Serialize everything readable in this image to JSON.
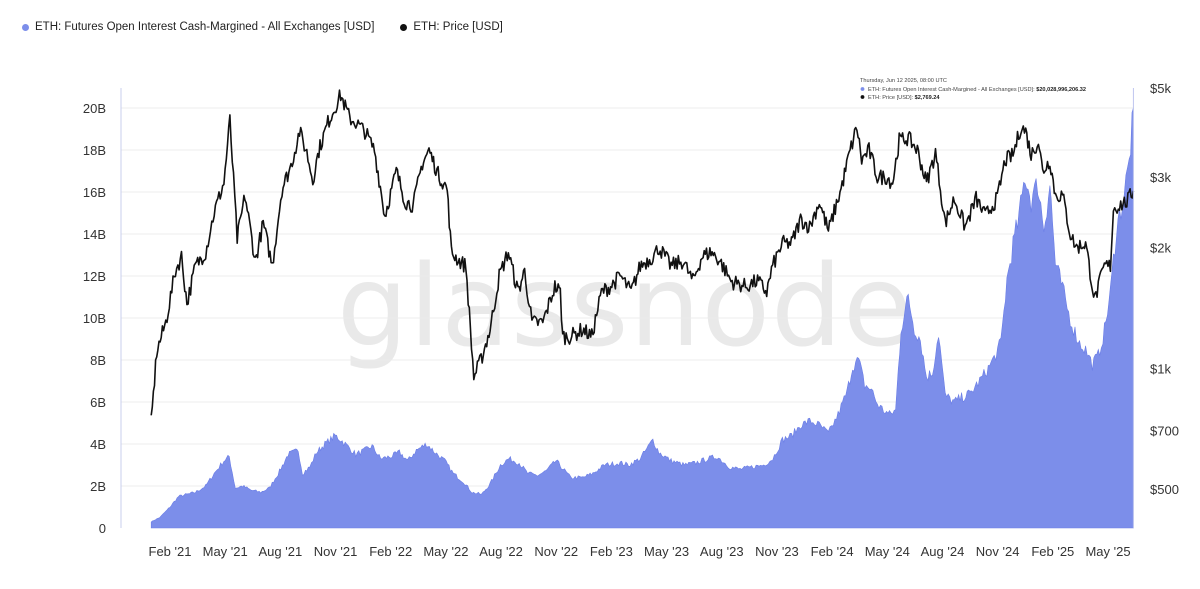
{
  "legend": {
    "oi_label": "ETH: Futures Open Interest Cash-Margined - All Exchanges [USD]",
    "price_label": "ETH: Price [USD]"
  },
  "colors": {
    "oi_fill": "#7c8eea",
    "oi_stroke": "#6a7de6",
    "price": "#111111",
    "grid": "#ececec"
  },
  "watermark": "glassnode",
  "tooltip": {
    "date": "Thursday, Jun 12 2025, 08:00 UTC",
    "oi_label": "ETH: Futures Open Interest Cash-Margined - All Exchanges [USD]:",
    "oi_value": "$20,028,996,206.32",
    "price_label": "ETH: Price [USD]:",
    "price_value": "$2,769.24"
  },
  "chart_data": {
    "type": "area",
    "x_start": "2021-01",
    "x_end": "2025-06",
    "x_ticks": [
      "Feb '21",
      "May '21",
      "Aug '21",
      "Nov '21",
      "Feb '22",
      "May '22",
      "Aug '22",
      "Nov '22",
      "Feb '23",
      "May '23",
      "Aug '23",
      "Nov '23",
      "Feb '24",
      "May '24",
      "Aug '24",
      "Nov '24",
      "Feb '25",
      "May '25"
    ],
    "y_left": {
      "label": "",
      "ticks": [
        "0",
        "2B",
        "4B",
        "6B",
        "8B",
        "10B",
        "12B",
        "14B",
        "16B",
        "18B",
        "20B"
      ],
      "range": [
        0,
        20000000000
      ]
    },
    "y_right": {
      "label": "",
      "scale": "log",
      "ticks": [
        "$500",
        "$700",
        "$1k",
        "$2k",
        "$3k",
        "$5k"
      ],
      "tick_values": [
        500,
        700,
        1000,
        2000,
        3000,
        5000
      ]
    },
    "grid": true,
    "series": [
      {
        "name": "ETH: Futures Open Interest Cash-Margined - All Exchanges [USD]",
        "axis": "left",
        "type": "area",
        "points": [
          [
            "2021-01-01",
            0.3
          ],
          [
            "2021-01-15",
            0.5
          ],
          [
            "2021-02-01",
            1.0
          ],
          [
            "2021-02-15",
            1.5
          ],
          [
            "2021-03-01",
            1.6
          ],
          [
            "2021-03-15",
            1.7
          ],
          [
            "2021-04-01",
            2.0
          ],
          [
            "2021-04-15",
            2.6
          ],
          [
            "2021-05-01",
            3.2
          ],
          [
            "2021-05-10",
            3.4
          ],
          [
            "2021-05-20",
            1.9
          ],
          [
            "2021-06-01",
            2.0
          ],
          [
            "2021-06-15",
            1.8
          ],
          [
            "2021-07-01",
            1.7
          ],
          [
            "2021-07-15",
            1.9
          ],
          [
            "2021-08-01",
            2.7
          ],
          [
            "2021-08-15",
            3.5
          ],
          [
            "2021-09-01",
            3.7
          ],
          [
            "2021-09-08",
            2.6
          ],
          [
            "2021-09-20",
            2.9
          ],
          [
            "2021-10-01",
            3.6
          ],
          [
            "2021-10-15",
            4.0
          ],
          [
            "2021-11-01",
            4.4
          ],
          [
            "2021-11-10",
            4.2
          ],
          [
            "2021-11-25",
            3.8
          ],
          [
            "2021-12-05",
            3.5
          ],
          [
            "2021-12-20",
            3.7
          ],
          [
            "2022-01-01",
            3.9
          ],
          [
            "2022-01-15",
            3.3
          ],
          [
            "2022-02-01",
            3.4
          ],
          [
            "2022-02-15",
            3.6
          ],
          [
            "2022-03-01",
            3.2
          ],
          [
            "2022-03-15",
            3.7
          ],
          [
            "2022-04-01",
            4.0
          ],
          [
            "2022-04-15",
            3.6
          ],
          [
            "2022-05-01",
            3.2
          ],
          [
            "2022-05-15",
            2.6
          ],
          [
            "2022-06-01",
            2.2
          ],
          [
            "2022-06-15",
            1.7
          ],
          [
            "2022-07-01",
            1.6
          ],
          [
            "2022-07-15",
            2.1
          ],
          [
            "2022-08-01",
            3.0
          ],
          [
            "2022-08-15",
            3.3
          ],
          [
            "2022-09-01",
            3.1
          ],
          [
            "2022-09-15",
            2.6
          ],
          [
            "2022-10-01",
            2.5
          ],
          [
            "2022-10-15",
            2.7
          ],
          [
            "2022-11-01",
            3.2
          ],
          [
            "2022-11-10",
            2.9
          ],
          [
            "2022-11-25",
            2.4
          ],
          [
            "2022-12-15",
            2.4
          ],
          [
            "2023-01-01",
            2.6
          ],
          [
            "2023-01-20",
            3.0
          ],
          [
            "2023-02-15",
            3.1
          ],
          [
            "2023-03-01",
            3.0
          ],
          [
            "2023-03-20",
            3.3
          ],
          [
            "2023-04-10",
            4.2
          ],
          [
            "2023-04-20",
            3.6
          ],
          [
            "2023-05-10",
            3.2
          ],
          [
            "2023-06-01",
            3.0
          ],
          [
            "2023-06-20",
            3.1
          ],
          [
            "2023-07-10",
            3.3
          ],
          [
            "2023-07-25",
            3.4
          ],
          [
            "2023-08-15",
            2.9
          ],
          [
            "2023-09-01",
            2.8
          ],
          [
            "2023-09-20",
            2.9
          ],
          [
            "2023-10-10",
            3.0
          ],
          [
            "2023-10-25",
            3.3
          ],
          [
            "2023-11-10",
            4.2
          ],
          [
            "2023-11-25",
            4.4
          ],
          [
            "2023-12-10",
            4.9
          ],
          [
            "2023-12-25",
            5.1
          ],
          [
            "2024-01-10",
            4.9
          ],
          [
            "2024-01-25",
            4.5
          ],
          [
            "2024-02-10",
            5.4
          ],
          [
            "2024-02-25",
            6.5
          ],
          [
            "2024-03-05",
            7.7
          ],
          [
            "2024-03-15",
            8.0
          ],
          [
            "2024-03-25",
            6.8
          ],
          [
            "2024-04-05",
            6.6
          ],
          [
            "2024-04-15",
            5.9
          ],
          [
            "2024-04-25",
            5.6
          ],
          [
            "2024-05-05",
            5.4
          ],
          [
            "2024-05-15",
            5.6
          ],
          [
            "2024-05-24",
            9.5
          ],
          [
            "2024-06-05",
            11.0
          ],
          [
            "2024-06-15",
            9.5
          ],
          [
            "2024-06-25",
            9.0
          ],
          [
            "2024-07-05",
            7.2
          ],
          [
            "2024-07-15",
            7.4
          ],
          [
            "2024-07-25",
            9.3
          ],
          [
            "2024-08-05",
            6.3
          ],
          [
            "2024-08-20",
            6.0
          ],
          [
            "2024-09-01",
            6.2
          ],
          [
            "2024-09-15",
            6.4
          ],
          [
            "2024-10-01",
            7.0
          ],
          [
            "2024-10-15",
            7.6
          ],
          [
            "2024-10-25",
            8.1
          ],
          [
            "2024-11-05",
            8.8
          ],
          [
            "2024-11-15",
            11.8
          ],
          [
            "2024-11-25",
            13.5
          ],
          [
            "2024-12-05",
            14.8
          ],
          [
            "2024-12-15",
            16.8
          ],
          [
            "2024-12-25",
            15.6
          ],
          [
            "2025-01-05",
            16.4
          ],
          [
            "2025-01-15",
            14.3
          ],
          [
            "2025-01-25",
            16.4
          ],
          [
            "2025-02-03",
            12.6
          ],
          [
            "2025-02-15",
            11.4
          ],
          [
            "2025-02-25",
            10.2
          ],
          [
            "2025-03-05",
            9.5
          ],
          [
            "2025-03-15",
            8.8
          ],
          [
            "2025-03-25",
            8.5
          ],
          [
            "2025-04-05",
            7.8
          ],
          [
            "2025-04-15",
            8.2
          ],
          [
            "2025-04-25",
            9.4
          ],
          [
            "2025-05-05",
            11.2
          ],
          [
            "2025-05-15",
            14.3
          ],
          [
            "2025-05-25",
            15.5
          ],
          [
            "2025-06-05",
            17.4
          ],
          [
            "2025-06-12",
            20.0
          ]
        ]
      },
      {
        "name": "ETH: Price [USD]",
        "axis": "right",
        "type": "line",
        "points": [
          [
            "2021-01-01",
            730
          ],
          [
            "2021-01-10",
            1100
          ],
          [
            "2021-01-25",
            1300
          ],
          [
            "2021-02-10",
            1750
          ],
          [
            "2021-02-20",
            1900
          ],
          [
            "2021-03-01",
            1450
          ],
          [
            "2021-03-15",
            1800
          ],
          [
            "2021-04-01",
            1950
          ],
          [
            "2021-04-15",
            2450
          ],
          [
            "2021-05-01",
            2900
          ],
          [
            "2021-05-11",
            4150
          ],
          [
            "2021-05-23",
            2100
          ],
          [
            "2021-06-05",
            2700
          ],
          [
            "2021-06-22",
            1850
          ],
          [
            "2021-07-05",
            2300
          ],
          [
            "2021-07-20",
            1800
          ],
          [
            "2021-08-05",
            2800
          ],
          [
            "2021-08-20",
            3200
          ],
          [
            "2021-09-03",
            3900
          ],
          [
            "2021-09-15",
            3450
          ],
          [
            "2021-09-25",
            2950
          ],
          [
            "2021-10-05",
            3500
          ],
          [
            "2021-10-20",
            4100
          ],
          [
            "2021-11-10",
            4800
          ],
          [
            "2021-11-25",
            4200
          ],
          [
            "2021-12-05",
            4100
          ],
          [
            "2021-12-20",
            3900
          ],
          [
            "2022-01-05",
            3500
          ],
          [
            "2022-01-22",
            2400
          ],
          [
            "2022-02-10",
            3100
          ],
          [
            "2022-02-25",
            2600
          ],
          [
            "2022-03-10",
            2550
          ],
          [
            "2022-03-25",
            3250
          ],
          [
            "2022-04-05",
            3500
          ],
          [
            "2022-04-20",
            3050
          ],
          [
            "2022-05-05",
            2800
          ],
          [
            "2022-05-12",
            1950
          ],
          [
            "2022-05-25",
            1850
          ],
          [
            "2022-06-05",
            1800
          ],
          [
            "2022-06-18",
            950
          ],
          [
            "2022-06-30",
            1050
          ],
          [
            "2022-07-15",
            1250
          ],
          [
            "2022-07-30",
            1700
          ],
          [
            "2022-08-14",
            1950
          ],
          [
            "2022-08-30",
            1550
          ],
          [
            "2022-09-10",
            1750
          ],
          [
            "2022-09-22",
            1300
          ],
          [
            "2022-10-10",
            1300
          ],
          [
            "2022-10-30",
            1600
          ],
          [
            "2022-11-08",
            1550
          ],
          [
            "2022-11-12",
            1200
          ],
          [
            "2022-11-25",
            1200
          ],
          [
            "2022-12-15",
            1250
          ],
          [
            "2022-12-30",
            1200
          ],
          [
            "2023-01-15",
            1550
          ],
          [
            "2023-01-30",
            1600
          ],
          [
            "2023-02-15",
            1700
          ],
          [
            "2023-03-05",
            1550
          ],
          [
            "2023-03-20",
            1800
          ],
          [
            "2023-04-10",
            1900
          ],
          [
            "2023-04-20",
            2000
          ],
          [
            "2023-05-10",
            1800
          ],
          [
            "2023-05-30",
            1850
          ],
          [
            "2023-06-15",
            1650
          ],
          [
            "2023-06-30",
            1900
          ],
          [
            "2023-07-15",
            1950
          ],
          [
            "2023-07-30",
            1850
          ],
          [
            "2023-08-17",
            1650
          ],
          [
            "2023-09-10",
            1600
          ],
          [
            "2023-09-30",
            1650
          ],
          [
            "2023-10-15",
            1550
          ],
          [
            "2023-10-25",
            1800
          ],
          [
            "2023-11-10",
            2050
          ],
          [
            "2023-11-25",
            2050
          ],
          [
            "2023-12-10",
            2350
          ],
          [
            "2023-12-25",
            2250
          ],
          [
            "2024-01-10",
            2600
          ],
          [
            "2024-01-25",
            2200
          ],
          [
            "2024-02-15",
            2800
          ],
          [
            "2024-02-28",
            3400
          ],
          [
            "2024-03-12",
            4000
          ],
          [
            "2024-03-20",
            3300
          ],
          [
            "2024-04-01",
            3500
          ],
          [
            "2024-04-15",
            3000
          ],
          [
            "2024-04-30",
            3000
          ],
          [
            "2024-05-10",
            2900
          ],
          [
            "2024-05-21",
            3700
          ],
          [
            "2024-06-05",
            3750
          ],
          [
            "2024-06-20",
            3500
          ],
          [
            "2024-07-05",
            2900
          ],
          [
            "2024-07-20",
            3450
          ],
          [
            "2024-08-05",
            2300
          ],
          [
            "2024-08-20",
            2650
          ],
          [
            "2024-09-07",
            2250
          ],
          [
            "2024-09-25",
            2650
          ],
          [
            "2024-10-10",
            2400
          ],
          [
            "2024-10-30",
            2650
          ],
          [
            "2024-11-12",
            3300
          ],
          [
            "2024-11-25",
            3400
          ],
          [
            "2024-12-08",
            4000
          ],
          [
            "2024-12-16",
            3900
          ],
          [
            "2024-12-25",
            3400
          ],
          [
            "2025-01-06",
            3700
          ],
          [
            "2025-01-13",
            3100
          ],
          [
            "2025-01-25",
            3300
          ],
          [
            "2025-02-03",
            2700
          ],
          [
            "2025-02-15",
            2700
          ],
          [
            "2025-02-28",
            2150
          ],
          [
            "2025-03-10",
            2000
          ],
          [
            "2025-03-25",
            2050
          ],
          [
            "2025-04-09",
            1480
          ],
          [
            "2025-04-25",
            1800
          ],
          [
            "2025-05-05",
            1800
          ],
          [
            "2025-05-10",
            2500
          ],
          [
            "2025-05-20",
            2550
          ],
          [
            "2025-06-01",
            2600
          ],
          [
            "2025-06-12",
            2769
          ]
        ]
      }
    ]
  }
}
